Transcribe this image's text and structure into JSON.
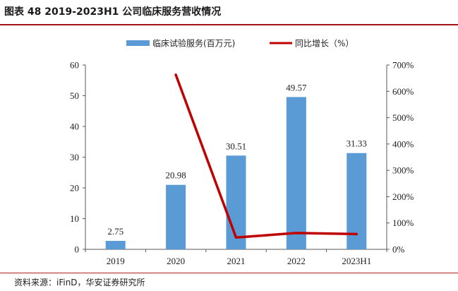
{
  "figure": {
    "title": "图表 48 2019-2023H1 公司临床服务营收情况",
    "source": "资料来源：iFinD，华安证券研究所"
  },
  "chart_data": {
    "type": "bar",
    "categories": [
      "2019",
      "2020",
      "2021",
      "2022",
      "2023H1"
    ],
    "series": [
      {
        "name": "临床试验服务(百万元)",
        "type": "bar",
        "axis": "left",
        "color": "#5b9bd5",
        "values": [
          2.75,
          20.98,
          30.51,
          49.57,
          31.33
        ],
        "data_labels": [
          "2.75",
          "20.98",
          "30.51",
          "49.57",
          "31.33"
        ]
      },
      {
        "name": "同比增长（%）",
        "type": "line",
        "axis": "right",
        "color": "#c00000",
        "values": [
          null,
          663,
          45,
          62,
          58
        ]
      }
    ],
    "y_left": {
      "range": [
        0,
        60
      ],
      "ticks": [
        0,
        10,
        20,
        30,
        40,
        50,
        60
      ],
      "tick_labels": [
        "0",
        "10",
        "20",
        "30",
        "40",
        "50",
        "60"
      ]
    },
    "y_right": {
      "range": [
        0,
        700
      ],
      "ticks": [
        0,
        100,
        200,
        300,
        400,
        500,
        600,
        700
      ],
      "tick_labels": [
        "0%",
        "100%",
        "200%",
        "300%",
        "400%",
        "500%",
        "600%",
        "700%"
      ]
    },
    "grid": false,
    "legend_position": "top-center"
  }
}
